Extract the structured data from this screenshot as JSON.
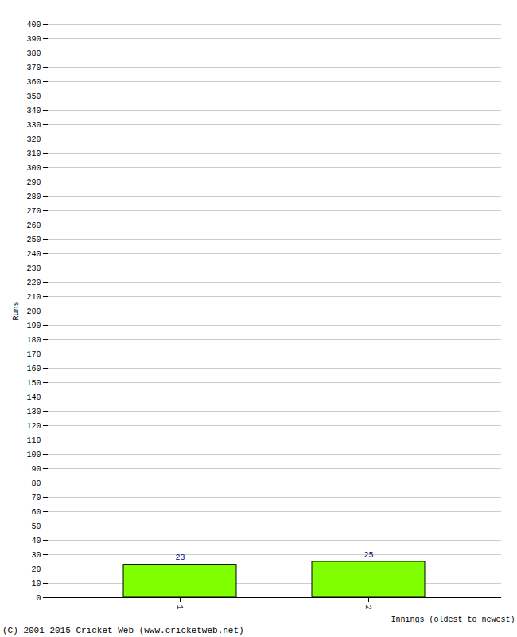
{
  "chart_data": {
    "type": "bar",
    "caption": "(C) 2001-2015 Cricket Web (www.cricketweb.net)",
    "x_label": "Innings (oldest to newest)",
    "y_label": "Runs",
    "categories": [
      "1",
      "2"
    ],
    "values": [
      23,
      25
    ],
    "color": "#80ff00",
    "ylim": [
      0,
      400
    ],
    "yticks": [
      0,
      10,
      20,
      30,
      40,
      50,
      60,
      70,
      80,
      90,
      100,
      110,
      120,
      130,
      140,
      150,
      160,
      170,
      180,
      190,
      200,
      210,
      220,
      230,
      240,
      250,
      260,
      270,
      280,
      290,
      300,
      310,
      320,
      330,
      340,
      350,
      360,
      370,
      380,
      390,
      400
    ],
    "grid": true,
    "data_labels": true
  }
}
